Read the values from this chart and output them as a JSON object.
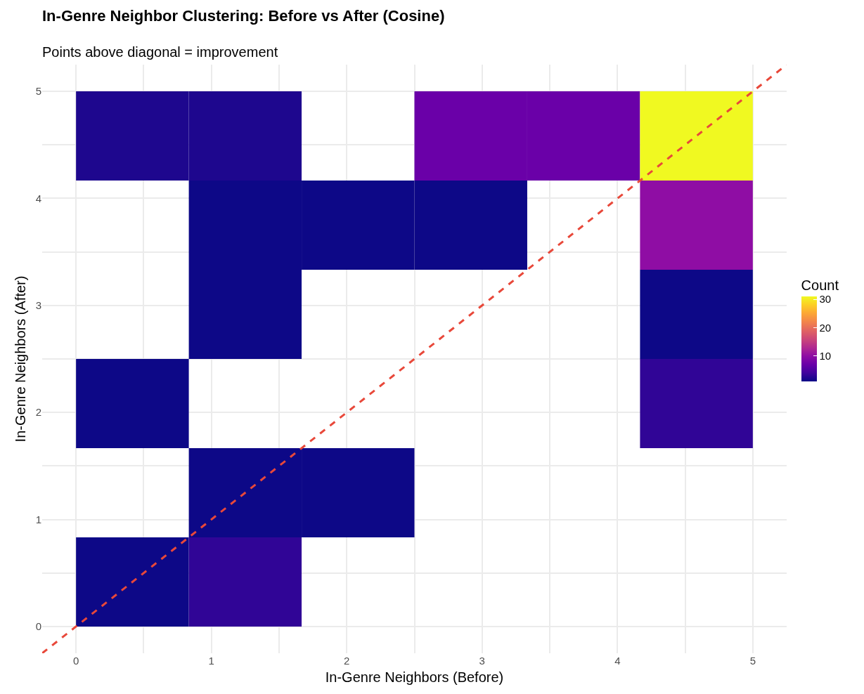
{
  "chart_data": {
    "type": "heatmap",
    "title": "In-Genre Neighbor Clustering: Before vs After (Cosine)",
    "subtitle": "Points above diagonal = improvement",
    "xlabel": "In-Genre Neighbors (Before)",
    "ylabel": "In-Genre Neighbors (After)",
    "clabel": "Count",
    "x": [
      0.4167,
      1.25,
      2.0833,
      2.9167,
      3.75,
      4.5833
    ],
    "cells": [
      [
        2,
        2,
        null,
        7,
        7,
        31
      ],
      [
        null,
        1,
        1,
        1,
        null,
        10
      ],
      [
        null,
        1,
        null,
        null,
        null,
        1
      ],
      [
        1,
        null,
        null,
        null,
        null,
        3
      ],
      [
        null,
        1,
        1,
        null,
        null,
        null
      ],
      [
        1,
        3,
        null,
        null,
        null,
        null
      ]
    ],
    "series": [
      {
        "type": "line",
        "x": [
          -0.25,
          5.25
        ],
        "values": [
          -0.25,
          5.25
        ],
        "color": "#e8483a",
        "line_style": "dashed"
      }
    ],
    "xlim": [
      -0.25,
      5.25
    ],
    "ylim": [
      -0.25,
      5.25
    ],
    "xticks": [
      0,
      {
        "value": 0.5,
        "label": null
      },
      1,
      {
        "value": 1.5,
        "label": null
      },
      2,
      {
        "value": 2.5,
        "label": null
      },
      3,
      {
        "value": 3.5,
        "label": null
      },
      4,
      {
        "value": 4.5,
        "label": null
      },
      5
    ],
    "yticks": [
      0,
      {
        "value": 0.5,
        "label": null
      },
      1,
      {
        "value": 1.5,
        "label": null
      },
      2,
      {
        "value": 2.5,
        "label": null
      },
      3,
      {
        "value": 3.5,
        "label": null
      },
      4,
      {
        "value": 4.5,
        "label": null
      },
      5
    ],
    "clim": [
      1,
      31
    ],
    "cticks": [
      10,
      20,
      30
    ],
    "grid": true
  }
}
